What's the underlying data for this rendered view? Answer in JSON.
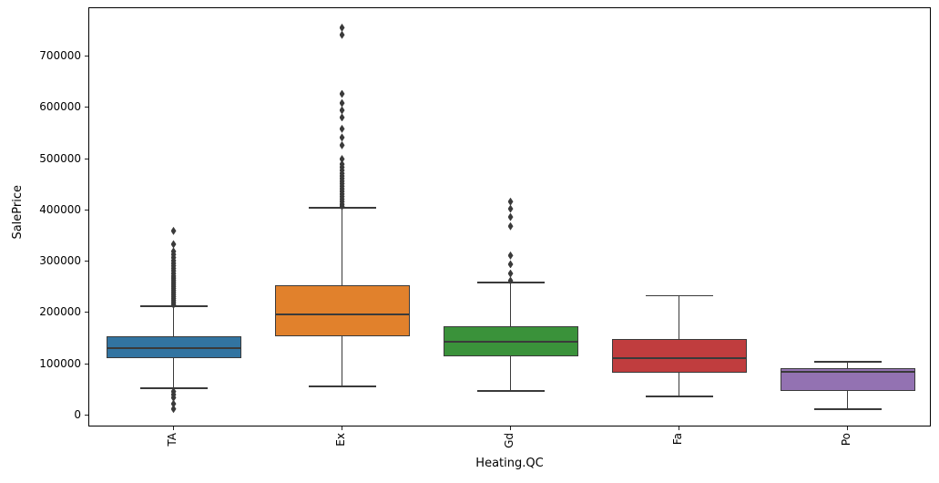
{
  "figure": {
    "background": "#ffffff",
    "line_color": "#3a3a3a",
    "spine_color": "#000000"
  },
  "chart_data": {
    "type": "box",
    "title": "",
    "xlabel": "Heating.QC",
    "ylabel": "SalePrice",
    "ylim": [
      -23000,
      794000
    ],
    "yticks": [
      0,
      100000,
      200000,
      300000,
      400000,
      500000,
      600000,
      700000
    ],
    "ytick_labels": [
      "0",
      "100000",
      "200000",
      "300000",
      "400000",
      "500000",
      "600000",
      "700000"
    ],
    "grid": false,
    "legend_position": "none",
    "categories": [
      "TA",
      "Ex",
      "Gd",
      "Fa",
      "Po"
    ],
    "xtick_rotation": 90,
    "box_width_frac": 0.8,
    "cap_width_frac": 0.5,
    "series": [
      {
        "category": "TA",
        "fill": "#3274a1",
        "whislo": 53000,
        "q1": 112000,
        "med": 132000,
        "q3": 154500,
        "whishi": 213000,
        "fliers": [
          360000,
          334000,
          320000,
          314000,
          308000,
          302000,
          297000,
          292000,
          287000,
          282000,
          277000,
          272000,
          268000,
          264000,
          260000,
          256000,
          252000,
          248000,
          244000,
          240000,
          236000,
          232000,
          228000,
          224000,
          220000,
          216000,
          47000,
          41000,
          35000,
          23000,
          13000
        ]
      },
      {
        "category": "Ex",
        "fill": "#e1812c",
        "whislo": 57000,
        "q1": 155000,
        "med": 197000,
        "q3": 254000,
        "whishi": 405000,
        "fliers": [
          756000,
          742000,
          627000,
          609000,
          595000,
          581000,
          559000,
          542000,
          527000,
          500000,
          490000,
          484000,
          478000,
          472000,
          467000,
          462000,
          457000,
          452000,
          447000,
          442000,
          437000,
          432000,
          427000,
          422000,
          417000,
          412000,
          408000
        ]
      },
      {
        "category": "Gd",
        "fill": "#3a923a",
        "whislo": 48000,
        "q1": 115500,
        "med": 144000,
        "q3": 174500,
        "whishi": 259000,
        "fliers": [
          417000,
          403000,
          387000,
          369000,
          312000,
          295000,
          277000,
          263000
        ]
      },
      {
        "category": "Fa",
        "fill": "#c03d3e",
        "whislo": 37000,
        "q1": 83500,
        "med": 112000,
        "q3": 149000,
        "whishi": 234000,
        "fliers": []
      },
      {
        "category": "Po",
        "fill": "#9372b2",
        "whislo": 12500,
        "q1": 48000,
        "med": 85000,
        "q3": 92500,
        "whishi": 105000,
        "fliers": []
      }
    ]
  }
}
